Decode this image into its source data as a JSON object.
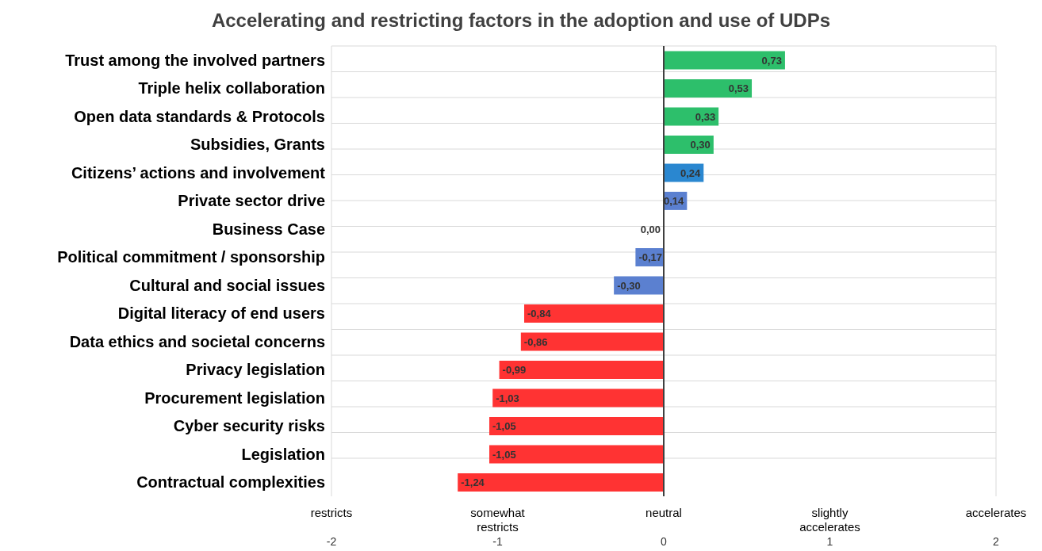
{
  "chart_data": {
    "type": "bar",
    "orientation": "horizontal",
    "title": "Accelerating and restricting factors in the adoption and use of UDPs",
    "categories": [
      "Trust among the involved partners",
      "Triple helix collaboration",
      "Open data standards & Protocols",
      "Subsidies, Grants",
      "Citizens’ actions and involvement",
      "Private sector drive",
      "Business Case",
      "Political commitment / sponsorship",
      "Cultural and social issues",
      "Digital literacy of end users",
      "Data ethics and societal concerns",
      "Privacy legislation",
      "Procurement legislation",
      "Cyber security risks",
      "Legislation",
      "Contractual complexities"
    ],
    "values": [
      0.73,
      0.53,
      0.33,
      0.3,
      0.24,
      0.14,
      0.0,
      -0.17,
      -0.3,
      -0.84,
      -0.86,
      -0.99,
      -1.03,
      -1.05,
      -1.05,
      -1.24
    ],
    "value_labels": [
      "0,73",
      "0,53",
      "0,33",
      "0,30",
      "0,24",
      "0,14",
      "0,00",
      "-0,17",
      "-0,30",
      "-0,84",
      "-0,86",
      "-0,99",
      "-1,03",
      "-1,05",
      "-1,05",
      "-1,24"
    ],
    "colors": [
      "#2dbf6b",
      "#2dbf6b",
      "#2dbf6b",
      "#2dbf6b",
      "#2a87d0",
      "#5b80d0",
      "#5b80d0",
      "#5b80d0",
      "#5b80d0",
      "#ff3333",
      "#ff3333",
      "#ff3333",
      "#ff3333",
      "#ff3333",
      "#ff3333",
      "#ff3333"
    ],
    "xlim": [
      -2,
      2
    ],
    "xticks": [
      -2,
      -1,
      0,
      1,
      2
    ],
    "annotations": [
      "restricts",
      "somewhat restricts",
      "neutral",
      "slightly accelerates",
      "accelerates"
    ],
    "legend": false,
    "ref_lines": [
      {
        "axis": "x",
        "value": 0,
        "color": "#404040"
      }
    ],
    "grid": true
  }
}
